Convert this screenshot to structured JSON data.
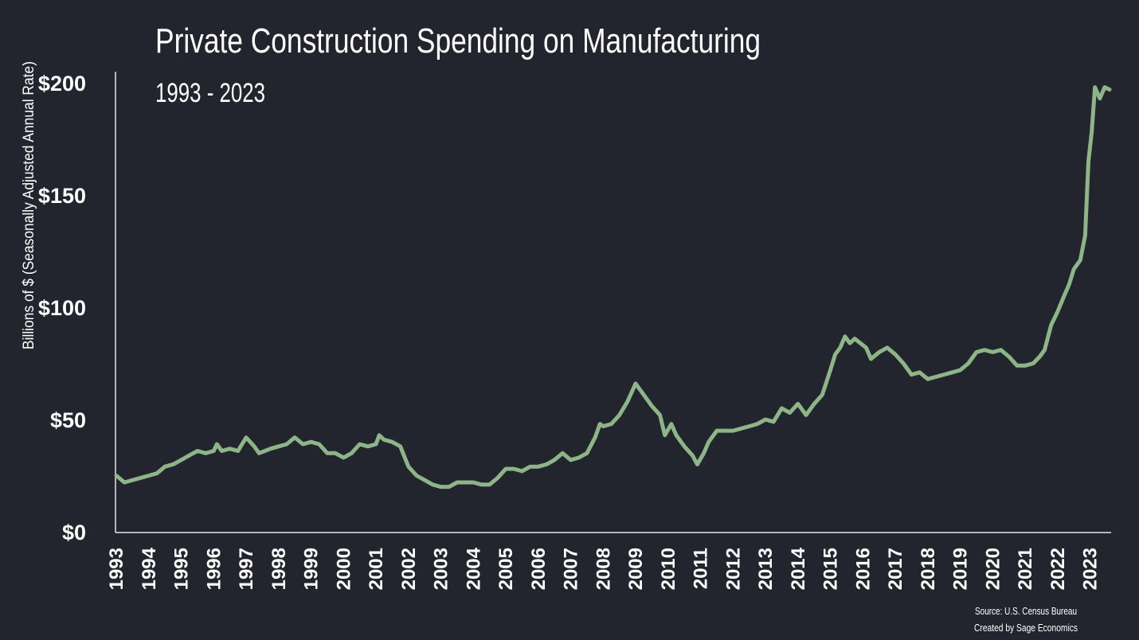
{
  "chart_data": {
    "type": "line",
    "title": "Private Construction Spending on Manufacturing",
    "subtitle": "1993 - 2023",
    "y_label": "Billions of $ (Seasonally Adjusted Annual Rate)",
    "source": "Source: U.S. Census Bureau",
    "credit": "Created by Sage Economics",
    "x": [
      1993.0,
      1993.25,
      1993.5,
      1993.75,
      1994.0,
      1994.25,
      1994.5,
      1994.75,
      1995.0,
      1995.25,
      1995.5,
      1995.75,
      1996.0,
      1996.1,
      1996.25,
      1996.5,
      1996.75,
      1997.0,
      1997.25,
      1997.4,
      1997.75,
      1998.0,
      1998.25,
      1998.5,
      1998.75,
      1999.0,
      1999.25,
      1999.5,
      1999.75,
      2000.0,
      2000.25,
      2000.5,
      2000.75,
      2001.0,
      2001.1,
      2001.25,
      2001.5,
      2001.75,
      2002.0,
      2002.25,
      2002.5,
      2002.75,
      2003.0,
      2003.25,
      2003.5,
      2003.75,
      2004.0,
      2004.25,
      2004.5,
      2004.75,
      2005.0,
      2005.25,
      2005.5,
      2005.75,
      2006.0,
      2006.25,
      2006.5,
      2006.75,
      2007.0,
      2007.25,
      2007.5,
      2007.75,
      2007.9,
      2008.0,
      2008.25,
      2008.5,
      2008.75,
      2009.0,
      2009.2,
      2009.5,
      2009.75,
      2009.9,
      2010.1,
      2010.25,
      2010.5,
      2010.75,
      2010.9,
      2011.1,
      2011.25,
      2011.5,
      2011.75,
      2012.0,
      2012.25,
      2012.5,
      2012.75,
      2013.0,
      2013.25,
      2013.5,
      2013.75,
      2014.0,
      2014.25,
      2014.5,
      2014.75,
      2015.0,
      2015.15,
      2015.3,
      2015.45,
      2015.6,
      2015.75,
      2016.1,
      2016.25,
      2016.5,
      2016.75,
      2017.0,
      2017.25,
      2017.5,
      2017.75,
      2018.0,
      2018.25,
      2018.5,
      2018.75,
      2019.0,
      2019.25,
      2019.5,
      2019.75,
      2020.0,
      2020.25,
      2020.5,
      2020.75,
      2021.0,
      2021.25,
      2021.45,
      2021.6,
      2021.8,
      2022.0,
      2022.2,
      2022.35,
      2022.5,
      2022.7,
      2022.85,
      2022.95,
      2023.05,
      2023.15,
      2023.3,
      2023.45,
      2023.6
    ],
    "series": [
      {
        "name": "Private Construction Spending on Manufacturing",
        "color": "#8db587",
        "values": [
          25,
          22,
          23,
          24,
          25,
          26,
          29,
          30,
          32,
          34,
          36,
          35,
          36,
          39,
          36,
          37,
          36,
          42,
          38,
          35,
          37,
          38,
          39,
          42,
          39,
          40,
          39,
          35,
          35,
          33,
          35,
          39,
          38,
          39,
          43,
          41,
          40,
          38,
          29,
          25,
          23,
          21,
          20,
          20,
          22,
          22,
          22,
          21,
          21,
          24,
          28,
          28,
          27,
          29,
          29,
          30,
          32,
          35,
          32,
          33,
          35,
          42,
          48,
          47,
          48,
          52,
          58,
          66,
          62,
          56,
          52,
          43,
          48,
          43,
          38,
          34,
          30,
          35,
          40,
          45,
          45,
          45,
          46,
          47,
          48,
          50,
          49,
          55,
          53,
          57,
          52,
          57,
          61,
          72,
          79,
          82,
          87,
          84,
          86,
          82,
          77,
          80,
          82,
          79,
          75,
          70,
          71,
          68,
          69,
          70,
          71,
          72,
          75,
          80,
          81,
          80,
          81,
          78,
          74,
          74,
          75,
          78,
          81,
          92,
          98,
          105,
          110,
          117,
          121,
          132,
          165,
          178,
          198,
          193,
          198,
          197
        ]
      }
    ],
    "xlim": [
      1993,
      2023.6
    ],
    "xticks": [
      1993,
      1994,
      1995,
      1996,
      1997,
      1998,
      1999,
      2000,
      2001,
      2002,
      2003,
      2004,
      2005,
      2006,
      2007,
      2008,
      2009,
      2010,
      2011,
      2012,
      2013,
      2014,
      2015,
      2016,
      2017,
      2018,
      2019,
      2020,
      2021,
      2022,
      2023
    ],
    "ylim": [
      0,
      200
    ],
    "yticks": [
      {
        "value": 0,
        "label": "$0"
      },
      {
        "value": 50,
        "label": "$50"
      },
      {
        "value": 100,
        "label": "$100"
      },
      {
        "value": 150,
        "label": "$150"
      },
      {
        "value": 200,
        "label": "$200"
      }
    ],
    "grid": false
  }
}
